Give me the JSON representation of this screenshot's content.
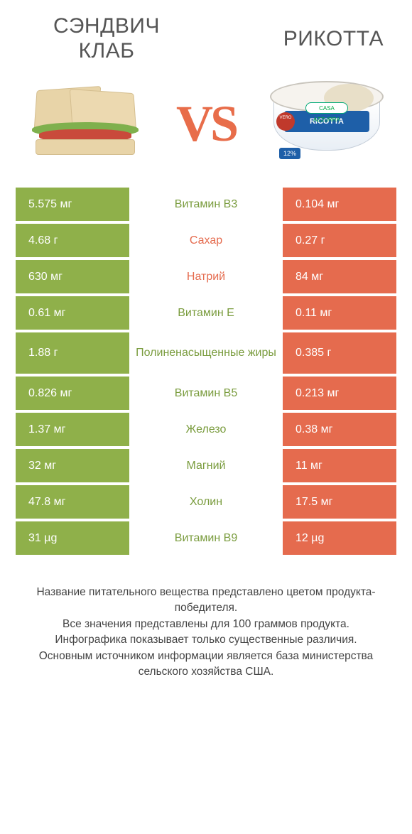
{
  "header": {
    "left_title_line1": "СЭНДВИЧ",
    "left_title_line2": "КЛАБ",
    "right_title": "РИКОТТА",
    "vs_text": "VS",
    "ricotta_label": "RICOTTA",
    "ricotta_brand": "CASA AZZURRA",
    "ricotta_pct": "12%"
  },
  "colors": {
    "left_bar": "#8fb04a",
    "right_bar": "#e56b4e",
    "left_label_text": "#7a9c3e",
    "right_label_text": "#e56b4e",
    "vs": "#e86d4a",
    "background": "#ffffff"
  },
  "rows": [
    {
      "left": "5.575 мг",
      "label": "Витамин B3",
      "right": "0.104 мг",
      "winner": "left"
    },
    {
      "left": "4.68 г",
      "label": "Сахар",
      "right": "0.27 г",
      "winner": "right"
    },
    {
      "left": "630 мг",
      "label": "Натрий",
      "right": "84 мг",
      "winner": "right"
    },
    {
      "left": "0.61 мг",
      "label": "Витамин E",
      "right": "0.11 мг",
      "winner": "left"
    },
    {
      "left": "1.88 г",
      "label": "Полиненасыщенные жиры",
      "right": "0.385 г",
      "winner": "left",
      "tall": true
    },
    {
      "left": "0.826 мг",
      "label": "Витамин B5",
      "right": "0.213 мг",
      "winner": "left"
    },
    {
      "left": "1.37 мг",
      "label": "Железо",
      "right": "0.38 мг",
      "winner": "left"
    },
    {
      "left": "32 мг",
      "label": "Магний",
      "right": "11 мг",
      "winner": "left"
    },
    {
      "left": "47.8 мг",
      "label": "Холин",
      "right": "17.5 мг",
      "winner": "left"
    },
    {
      "left": "31 µg",
      "label": "Витамин B9",
      "right": "12 µg",
      "winner": "left"
    }
  ],
  "footer": {
    "line1": "Название питательного вещества представлено цветом продукта-победителя.",
    "line2": "Все значения представлены для 100 граммов продукта.",
    "line3": "Инфографика показывает только существенные различия.",
    "line4": "Основным источником информации является база министерства сельского хозяйства США."
  }
}
